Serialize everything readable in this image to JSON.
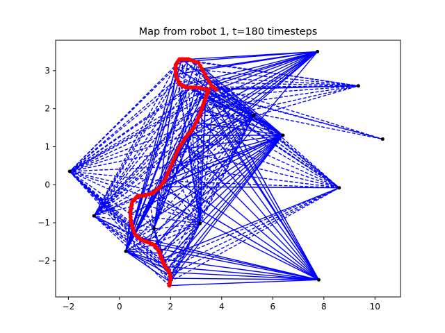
{
  "chart_data": {
    "type": "scatter",
    "title": "Map from robot 1, t=180 timesteps",
    "xlabel": "",
    "ylabel": "",
    "xlim": [
      -2.5,
      11.0
    ],
    "ylim": [
      -2.95,
      3.8
    ],
    "x_ticks": [
      -2,
      0,
      2,
      4,
      6,
      8,
      10
    ],
    "y_ticks": [
      -2,
      -1,
      0,
      1,
      2,
      3
    ],
    "grid": false,
    "colors": {
      "landmarks": "#000000",
      "observations": "#0000ff",
      "trajectory": "#ff0000"
    },
    "landmarks": [
      [
        7.75,
        3.5
      ],
      [
        9.35,
        2.6
      ],
      [
        10.3,
        1.2
      ],
      [
        6.4,
        1.3
      ],
      [
        5.25,
        1.82
      ],
      [
        8.6,
        -0.08
      ],
      [
        7.8,
        -2.5
      ],
      [
        3.15,
        -1.02
      ],
      [
        1.35,
        -1.15
      ],
      [
        0.25,
        -1.75
      ],
      [
        -1.0,
        -0.82
      ],
      [
        -1.95,
        0.35
      ]
    ],
    "trajectory": [
      [
        1.95,
        -2.65
      ],
      [
        1.98,
        -2.52
      ],
      [
        2.0,
        -2.4
      ],
      [
        1.95,
        -2.3
      ],
      [
        1.85,
        -2.2
      ],
      [
        1.75,
        -2.1
      ],
      [
        1.65,
        -1.95
      ],
      [
        1.55,
        -1.75
      ],
      [
        1.4,
        -1.6
      ],
      [
        1.15,
        -1.52
      ],
      [
        0.85,
        -1.45
      ],
      [
        0.6,
        -1.3
      ],
      [
        0.45,
        -1.0
      ],
      [
        0.42,
        -0.7
      ],
      [
        0.5,
        -0.45
      ],
      [
        0.7,
        -0.3
      ],
      [
        1.0,
        -0.28
      ],
      [
        1.3,
        -0.22
      ],
      [
        1.6,
        -0.05
      ],
      [
        1.8,
        0.15
      ],
      [
        1.95,
        0.4
      ],
      [
        2.15,
        0.7
      ],
      [
        2.35,
        1.0
      ],
      [
        2.6,
        1.25
      ],
      [
        2.85,
        1.45
      ],
      [
        3.05,
        1.7
      ],
      [
        3.2,
        1.95
      ],
      [
        3.3,
        2.15
      ],
      [
        3.4,
        2.35
      ],
      [
        3.5,
        2.5
      ],
      [
        3.0,
        2.56
      ],
      [
        2.6,
        2.56
      ],
      [
        2.35,
        2.65
      ],
      [
        2.2,
        2.9
      ],
      [
        2.2,
        3.15
      ],
      [
        2.35,
        3.3
      ],
      [
        2.7,
        3.3
      ],
      [
        3.1,
        3.2
      ],
      [
        3.35,
        2.9
      ],
      [
        3.6,
        2.6
      ],
      [
        3.8,
        2.5
      ]
    ]
  }
}
